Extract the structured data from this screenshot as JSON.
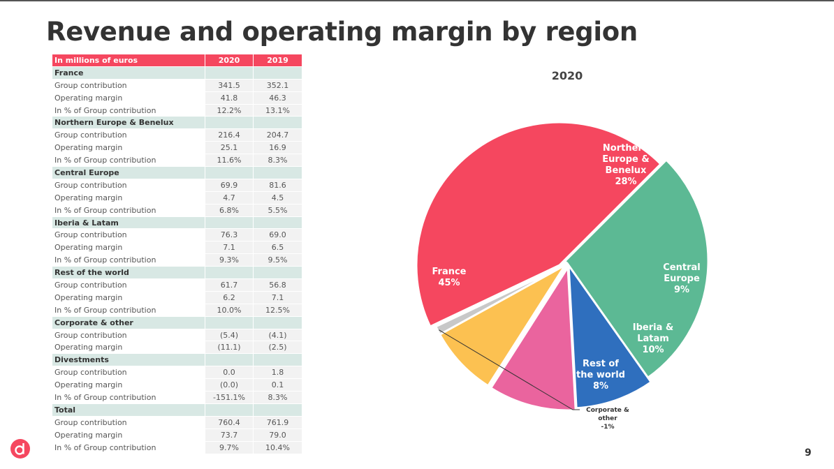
{
  "page": {
    "title": "Revenue and operating margin by region",
    "page_number": "9",
    "logo_icon": "dp-logo-icon"
  },
  "table": {
    "header": [
      "In millions of euros",
      "2020",
      "2019"
    ],
    "rows": [
      {
        "type": "section",
        "label": "France"
      },
      {
        "type": "row",
        "label": "Group contribution",
        "v2020": "341.5",
        "v2019": "352.1"
      },
      {
        "type": "row",
        "label": "Operating margin",
        "v2020": "41.8",
        "v2019": "46.3"
      },
      {
        "type": "row",
        "label": "In % of Group contribution",
        "v2020": "12.2%",
        "v2019": "13.1%"
      },
      {
        "type": "section",
        "label": "Northern Europe & Benelux"
      },
      {
        "type": "row",
        "label": "Group contribution",
        "v2020": "216.4",
        "v2019": "204.7"
      },
      {
        "type": "row",
        "label": "Operating margin",
        "v2020": "25.1",
        "v2019": "16.9"
      },
      {
        "type": "row",
        "label": "In % of Group contribution",
        "v2020": "11.6%",
        "v2019": "8.3%"
      },
      {
        "type": "section",
        "label": "Central Europe"
      },
      {
        "type": "row",
        "label": "Group contribution",
        "v2020": "69.9",
        "v2019": "81.6"
      },
      {
        "type": "row",
        "label": "Operating margin",
        "v2020": "4.7",
        "v2019": "4.5"
      },
      {
        "type": "row",
        "label": "In % of Group contribution",
        "v2020": "6.8%",
        "v2019": "5.5%"
      },
      {
        "type": "section",
        "label": "Iberia & Latam"
      },
      {
        "type": "row",
        "label": "Group contribution",
        "v2020": "76.3",
        "v2019": "69.0"
      },
      {
        "type": "row",
        "label": "Operating margin",
        "v2020": "7.1",
        "v2019": "6.5"
      },
      {
        "type": "row",
        "label": "In % of Group contribution",
        "v2020": "9.3%",
        "v2019": "9.5%"
      },
      {
        "type": "section",
        "label": "Rest of the world"
      },
      {
        "type": "row",
        "label": "Group contribution",
        "v2020": "61.7",
        "v2019": "56.8"
      },
      {
        "type": "row",
        "label": "Operating margin",
        "v2020": "6.2",
        "v2019": "7.1"
      },
      {
        "type": "row",
        "label": "In % of Group contribution",
        "v2020": "10.0%",
        "v2019": "12.5%"
      },
      {
        "type": "section",
        "label": "Corporate & other"
      },
      {
        "type": "row",
        "label": "Group contribution",
        "v2020": "(5.4)",
        "v2019": "(4.1)"
      },
      {
        "type": "row",
        "label": "Operating margin",
        "v2020": "(11.1)",
        "v2019": "(2.5)"
      },
      {
        "type": "section",
        "label": "Divestments"
      },
      {
        "type": "row",
        "label": "Group contribution",
        "v2020": "0.0",
        "v2019": "1.8"
      },
      {
        "type": "row",
        "label": "Operating margin",
        "v2020": "(0.0)",
        "v2019": "0.1"
      },
      {
        "type": "row",
        "label": "In % of Group contribution",
        "v2020": "-151.1%",
        "v2019": "8.3%"
      },
      {
        "type": "section",
        "label": "Total"
      },
      {
        "type": "row",
        "label": "Group contribution",
        "v2020": "760.4",
        "v2019": "761.9"
      },
      {
        "type": "row",
        "label": "Operating margin",
        "v2020": "73.7",
        "v2019": "79.0"
      },
      {
        "type": "row",
        "label": "In % of Group contribution",
        "v2020": "9.7%",
        "v2019": "10.4%"
      }
    ]
  },
  "chart_data": {
    "type": "pie",
    "title": "2020",
    "slices": [
      {
        "label": [
          "Northern",
          "Europe &",
          "Benelux"
        ],
        "pct_label": "28%",
        "value": 28,
        "color": "#5cb994",
        "text_color": "#ffffff"
      },
      {
        "label": [
          "Central",
          "Europe"
        ],
        "pct_label": "9%",
        "value": 9,
        "color": "#2f6fbe",
        "text_color": "#ffffff"
      },
      {
        "label": [
          "Iberia &",
          "Latam"
        ],
        "pct_label": "10%",
        "value": 10,
        "color": "#ea649e",
        "text_color": "#ffffff"
      },
      {
        "label": [
          "Rest of",
          "the world"
        ],
        "pct_label": "8%",
        "value": 8,
        "color": "#fcc151",
        "text_color": "#ffffff"
      },
      {
        "label": [
          "Corporate &",
          "other"
        ],
        "pct_label": "-1%",
        "value": 1,
        "color": "#c8c8c8",
        "text_color": "#333333",
        "callout": true
      },
      {
        "label": [
          "France"
        ],
        "pct_label": "45%",
        "value": 45,
        "color": "#f5475f",
        "text_color": "#ffffff"
      }
    ]
  }
}
